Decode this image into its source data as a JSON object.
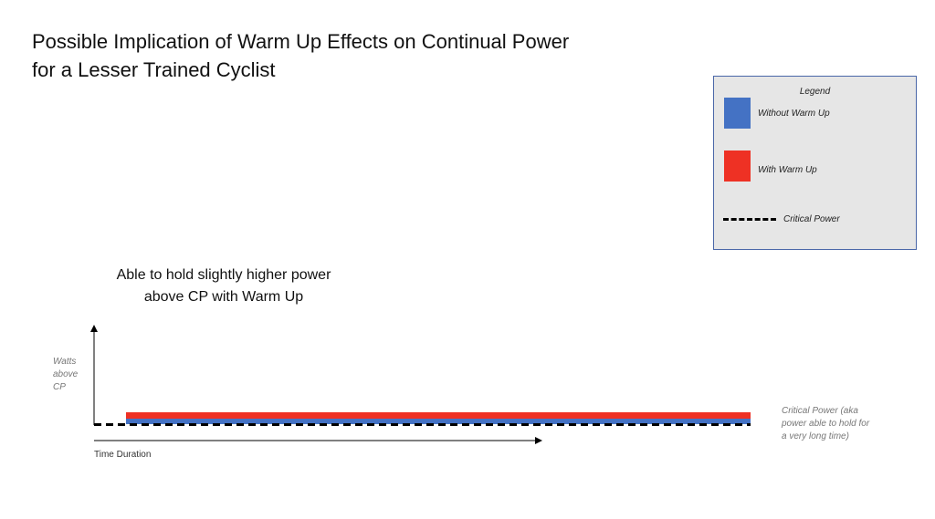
{
  "title": {
    "line1": "Possible Implication of Warm Up Effects on Continual Power",
    "line2": "for a Lesser Trained Cyclist"
  },
  "legend": {
    "title": "Legend",
    "items": [
      {
        "label": "Without Warm Up",
        "color": "#4472c4",
        "kind": "swatch"
      },
      {
        "label": "With Warm Up",
        "color": "#ee3124",
        "kind": "swatch"
      },
      {
        "label": "Critical Power",
        "color": "#000000",
        "kind": "dashed-line"
      }
    ]
  },
  "annotation": {
    "line1": "Able to hold slightly higher power",
    "line2": "above CP with Warm Up"
  },
  "axes": {
    "y_label": [
      "Watts",
      "above",
      "CP"
    ],
    "x_label": "Time Duration"
  },
  "critical_power_note": [
    "Critical Power (aka",
    "power able to hold for",
    "a very long time)"
  ],
  "colors": {
    "without_warm_up": "#4472c4",
    "with_warm_up": "#ee3124",
    "critical_power": "#000000",
    "legend_border": "#4a67a8",
    "legend_background": "#e6e6e6"
  }
}
